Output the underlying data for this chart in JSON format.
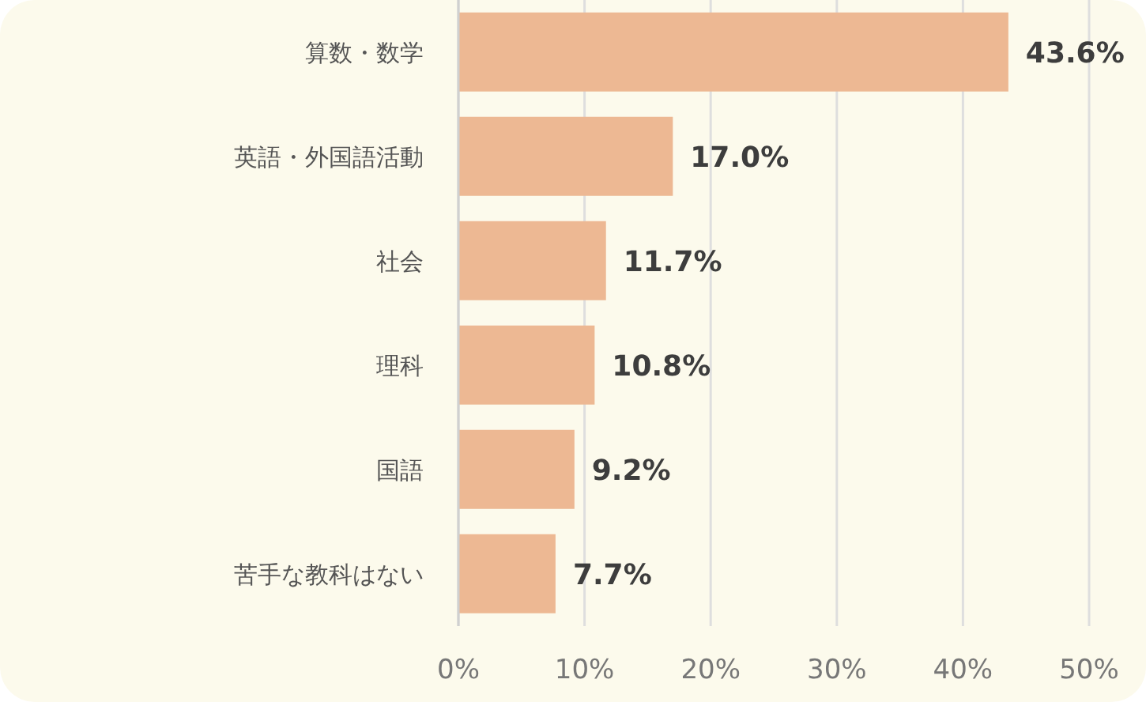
{
  "chart_data": {
    "type": "bar",
    "orientation": "horizontal",
    "categories": [
      "算数・数学",
      "英語・外国語活動",
      "社会",
      "理科",
      "国語",
      "苦手な教科はない"
    ],
    "values": [
      43.6,
      17.0,
      11.7,
      10.8,
      9.2,
      7.7
    ],
    "value_labels": [
      "43.6%",
      "17.0%",
      "11.7%",
      "10.8%",
      "9.2%",
      "7.7%"
    ],
    "color": "#edb893",
    "xlim": [
      0,
      50
    ],
    "xticks": [
      {
        "value": 0,
        "label": "0%"
      },
      {
        "value": 10,
        "label": "10%"
      },
      {
        "value": 20,
        "label": "20%"
      },
      {
        "value": 30,
        "label": "30%"
      },
      {
        "value": 40,
        "label": "40%"
      },
      {
        "value": 50,
        "label": "50%"
      }
    ],
    "grid": "x"
  }
}
